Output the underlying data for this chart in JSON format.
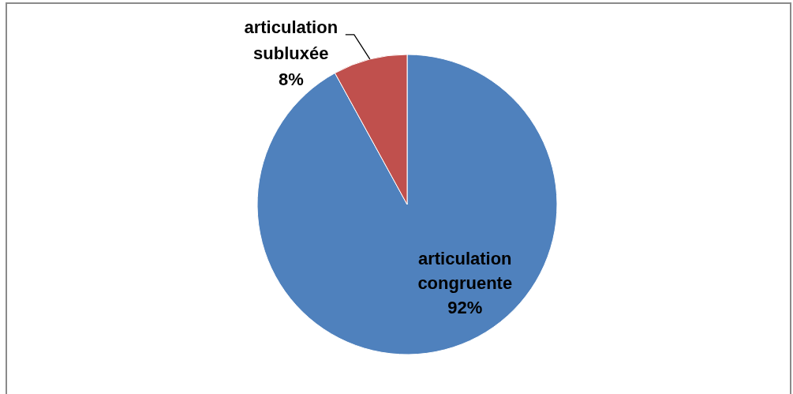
{
  "chart_data": {
    "type": "pie",
    "categories": [
      "articulation congruente",
      "articulation subluxée"
    ],
    "values": [
      92,
      8
    ],
    "colors": [
      "#4f81bd",
      "#c0504d"
    ],
    "value_labels": [
      "92%",
      "8%"
    ]
  }
}
